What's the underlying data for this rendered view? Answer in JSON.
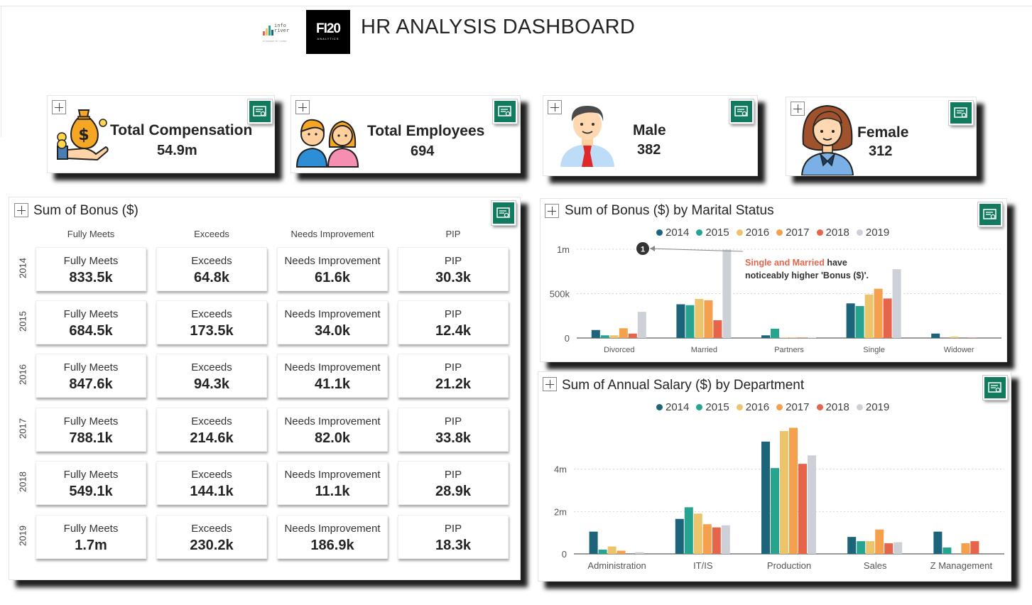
{
  "header": {
    "title": "HR ANALYSIS DASHBOARD",
    "logo_inforiver": "info river",
    "logo_inforiver_tag": "POWERED BY LUMEL",
    "logo_f_main": "FI20",
    "logo_f_sub": "ANALYTICS"
  },
  "kpis": {
    "compensation": {
      "label": "Total Compensation",
      "value": "54.9m",
      "icon": "money-bag-hand-icon"
    },
    "employees": {
      "label": "Total Employees",
      "value": "694",
      "icon": "employees-couple-icon"
    },
    "male": {
      "label": "Male",
      "value": "382",
      "icon": "male-avatar-icon"
    },
    "female": {
      "label": "Female",
      "value": "312",
      "icon": "female-avatar-icon"
    }
  },
  "bonus_matrix": {
    "title": "Sum of Bonus ($)",
    "columns": [
      "Fully Meets",
      "Exceeds",
      "Needs Improvement",
      "PIP"
    ],
    "rows": [
      {
        "year": "2014",
        "values": [
          "833.5k",
          "64.8k",
          "61.6k",
          "30.3k"
        ]
      },
      {
        "year": "2015",
        "values": [
          "684.5k",
          "173.5k",
          "34.0k",
          "12.4k"
        ]
      },
      {
        "year": "2016",
        "values": [
          "847.6k",
          "94.3k",
          "41.1k",
          "21.2k"
        ]
      },
      {
        "year": "2017",
        "values": [
          "788.1k",
          "214.6k",
          "82.0k",
          "33.8k"
        ]
      },
      {
        "year": "2018",
        "values": [
          "549.1k",
          "144.1k",
          "11.1k",
          "28.9k"
        ]
      },
      {
        "year": "2019",
        "values": [
          "1.7m",
          "230.2k",
          "186.9k",
          "18.3k"
        ]
      }
    ]
  },
  "colors": {
    "2014": "#1b6479",
    "2015": "#26a48f",
    "2016": "#ecc46c",
    "2017": "#f4a04c",
    "2018": "#e6654a",
    "2019": "#cdd1d7",
    "accent": "#117a5f",
    "annotation": "#e6654a"
  },
  "years": [
    "2014",
    "2015",
    "2016",
    "2017",
    "2018",
    "2019"
  ],
  "marital_chart": {
    "title": "Sum of Bonus ($) by Marital Status",
    "annotation_number": "1",
    "annotation_highlight": "Single and Married",
    "annotation_rest": " have noticeably higher 'Bonus ($)'."
  },
  "salary_chart": {
    "title": "Sum of Annual Salary ($) by Department"
  },
  "chart_data": [
    {
      "type": "bar",
      "title": "Sum of Bonus ($) by Marital Status",
      "categories": [
        "Divorced",
        "Married",
        "Partners",
        "Single",
        "Widower"
      ],
      "series": [
        {
          "name": "2014",
          "values": [
            90000,
            380000,
            30000,
            390000,
            50000
          ]
        },
        {
          "name": "2015",
          "values": [
            30000,
            370000,
            105000,
            360000,
            0
          ]
        },
        {
          "name": "2016",
          "values": [
            30000,
            440000,
            5000,
            490000,
            15000
          ]
        },
        {
          "name": "2017",
          "values": [
            110000,
            425000,
            5000,
            555000,
            0
          ]
        },
        {
          "name": "2018",
          "values": [
            50000,
            200000,
            5000,
            445000,
            5000
          ]
        },
        {
          "name": "2019",
          "values": [
            295000,
            995000,
            5000,
            775000,
            0
          ]
        }
      ],
      "ylim": [
        0,
        1000000
      ],
      "yticks": [
        0,
        500000,
        1000000
      ],
      "ytick_labels": [
        "0",
        "500k",
        "1m"
      ],
      "grid": true,
      "legend": "top"
    },
    {
      "type": "bar",
      "title": "Sum of Annual Salary ($) by Department",
      "categories": [
        "Administration",
        "IT/IS",
        "Production",
        "Sales",
        "Z Management"
      ],
      "series": [
        {
          "name": "2014",
          "values": [
            1050000,
            1650000,
            5300000,
            800000,
            1050000
          ]
        },
        {
          "name": "2015",
          "values": [
            200000,
            2200000,
            4050000,
            600000,
            300000
          ]
        },
        {
          "name": "2016",
          "values": [
            350000,
            1900000,
            5800000,
            600000,
            0
          ]
        },
        {
          "name": "2017",
          "values": [
            150000,
            1400000,
            5950000,
            1150000,
            500000
          ]
        },
        {
          "name": "2018",
          "values": [
            0,
            1250000,
            4250000,
            500000,
            600000
          ]
        },
        {
          "name": "2019",
          "values": [
            80000,
            1350000,
            4650000,
            550000,
            0
          ]
        }
      ],
      "ylim": [
        0,
        6200000
      ],
      "yticks": [
        0,
        2000000,
        4000000
      ],
      "ytick_labels": [
        "0",
        "2m",
        "4m"
      ],
      "grid": true,
      "legend": "top"
    }
  ]
}
